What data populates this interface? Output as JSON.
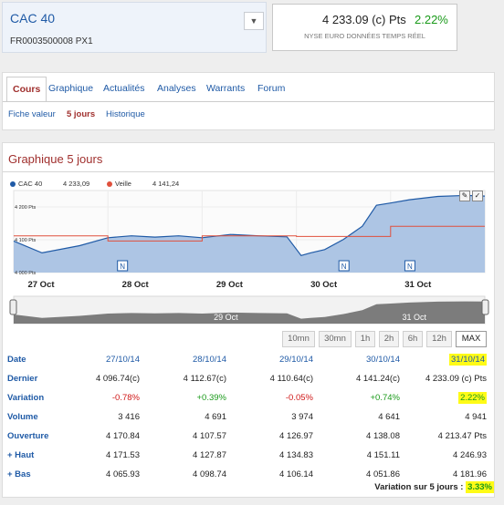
{
  "header": {
    "title": "CAC 40",
    "isin": "FR0003500008 PX1",
    "price": "4 233.09 (c) Pts",
    "variation": "2.22%",
    "source": "NYSE EURO DONNÉES TEMPS RÉEL",
    "dropdown_icon": "chevron-down-icon"
  },
  "tabs": [
    "Cours",
    "Graphique",
    "Actualités",
    "Analyses",
    "Warrants",
    "Forum"
  ],
  "subtabs": [
    "Fiche valeur",
    "5 jours",
    "Historique"
  ],
  "chart_section": {
    "title": "Graphique 5 jours",
    "legend": [
      {
        "name": "CAC 40",
        "value": "4 233,09",
        "color": "#1f5aa6"
      },
      {
        "name": "Veille",
        "value": "4 141,24",
        "color": "#e0503c"
      }
    ],
    "ytick_labels": [
      "4 200 Pts",
      "4 100 Pts",
      "4 000 Pts"
    ],
    "marker_label": "N",
    "navigator_labels": [
      "29 Oct",
      "31 Oct"
    ],
    "zoom_buttons": [
      "10mn",
      "30mn",
      "1h",
      "2h",
      "6h",
      "12h",
      "MAX"
    ],
    "active_zoom": "MAX",
    "tools": [
      "pencil-icon",
      "checkmark-icon"
    ]
  },
  "chart_data": {
    "type": "area",
    "x_ticks": [
      "27 Oct",
      "28 Oct",
      "29 Oct",
      "30 Oct",
      "31 Oct"
    ],
    "ylim": [
      4000,
      4250
    ],
    "series": [
      {
        "name": "CAC 40",
        "x": [
          0,
          0.3,
          0.7,
          1.0,
          1.25,
          1.5,
          1.75,
          2.0,
          2.3,
          2.6,
          2.9,
          3.05,
          3.15,
          3.3,
          3.5,
          3.7,
          3.85,
          4.0,
          4.2,
          4.5,
          4.8,
          5.0
        ],
        "values": [
          4096,
          4060,
          4082,
          4106,
          4112,
          4108,
          4112,
          4106,
          4116,
          4112,
          4109,
          4052,
          4060,
          4070,
          4101,
          4141,
          4205,
          4212,
          4222,
          4232,
          4235,
          4233
        ]
      },
      {
        "name": "Veille",
        "x": [
          0,
          1.0,
          1.0,
          2.0,
          2.0,
          3.0,
          3.0,
          4.0,
          4.0,
          5.0
        ],
        "values": [
          4112,
          4112,
          4096,
          4096,
          4112,
          4112,
          4110,
          4110,
          4141,
          4141
        ]
      }
    ],
    "news_markers_x": [
      1.15,
      3.5,
      4.2
    ]
  },
  "table": {
    "labels": [
      "Date",
      "Dernier",
      "Variation",
      "Volume",
      "Ouverture",
      "+ Haut",
      "+ Bas"
    ],
    "dates": [
      "27/10/14",
      "28/10/14",
      "29/10/14",
      "30/10/14",
      "31/10/14"
    ],
    "dernier": [
      "4 096.74(c)",
      "4 112.67(c)",
      "4 110.64(c)",
      "4 141.24(c)",
      "4 233.09 (c) Pts"
    ],
    "variation": [
      "-0.78%",
      "+0.39%",
      "-0.05%",
      "+0.74%",
      "2.22%"
    ],
    "volume": [
      "3 416",
      "4 691",
      "3 974",
      "4 641",
      "4 941"
    ],
    "ouverture": [
      "4 170.84",
      "4 107.57",
      "4 126.97",
      "4 138.08",
      "4 213.47 Pts"
    ],
    "haut": [
      "4 171.53",
      "4 127.87",
      "4 134.83",
      "4 151.11",
      "4 246.93"
    ],
    "bas": [
      "4 065.93",
      "4 098.74",
      "4 106.14",
      "4 051.86",
      "4 181.96"
    ],
    "total_label": "Variation sur 5 jours :",
    "total_value": "3.33%"
  },
  "colors": {
    "accent": "#1f5aa6",
    "active": "#a0302e",
    "positive": "#1a9a1a",
    "negative": "#d01818",
    "highlight": "#fffb17"
  }
}
